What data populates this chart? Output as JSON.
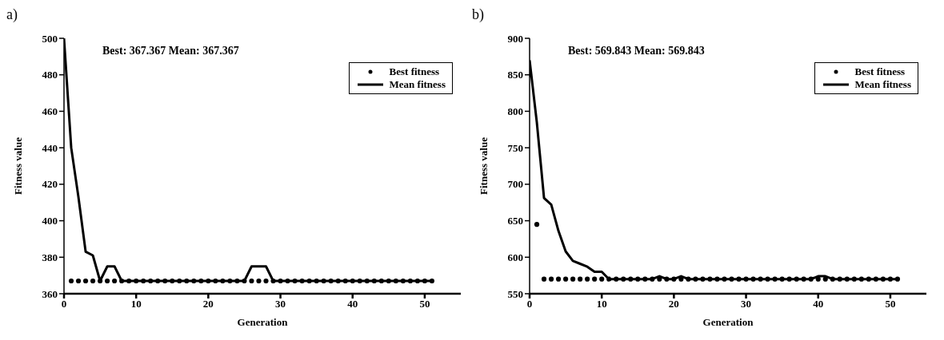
{
  "chart_data": [
    {
      "type": "line",
      "title": "a)",
      "xlabel": "Generation",
      "ylabel": "Fitness value",
      "annotations": [
        "Best: 367.367 Mean: 367.367"
      ],
      "x": [
        0,
        1,
        2,
        3,
        4,
        5,
        6,
        7,
        8,
        9,
        10,
        11,
        12,
        13,
        14,
        15,
        16,
        17,
        18,
        19,
        20,
        21,
        22,
        23,
        24,
        25,
        26,
        27,
        28,
        29,
        30,
        31,
        32,
        33,
        34,
        35,
        36,
        37,
        38,
        39,
        40,
        41,
        42,
        43,
        44,
        45,
        46,
        47,
        48,
        49,
        50,
        51
      ],
      "series": [
        {
          "name": "Best fitness",
          "type": "scatter",
          "marker": "circle",
          "color": "#000000",
          "values": [
            null,
            367,
            367,
            367,
            367,
            367,
            367,
            367,
            367,
            367,
            367,
            367,
            367,
            367,
            367,
            367,
            367,
            367,
            367,
            367,
            367,
            367,
            367,
            367,
            367,
            367,
            367,
            367,
            367,
            367,
            367,
            367,
            367,
            367,
            367,
            367,
            367,
            367,
            367,
            367,
            367,
            367,
            367,
            367,
            367,
            367,
            367,
            367,
            367,
            367,
            367,
            367
          ]
        },
        {
          "name": "Mean fitness",
          "marker": "none",
          "line_style": "solid",
          "color": "#000000",
          "values": [
            500,
            440,
            413,
            383,
            381,
            367,
            375,
            375,
            367,
            367,
            367,
            367,
            367,
            367,
            367,
            367,
            367,
            367,
            367,
            367,
            367,
            367,
            367,
            367,
            367,
            367,
            375,
            375,
            375,
            367,
            367,
            367,
            367,
            367,
            367,
            367,
            367,
            367,
            367,
            367,
            367,
            367,
            367,
            367,
            367,
            367,
            367,
            367,
            367,
            367,
            367,
            367
          ]
        }
      ],
      "xlim": [
        0,
        55
      ],
      "xticks": [
        0,
        10,
        20,
        30,
        40,
        50
      ],
      "ylim": [
        360,
        500
      ],
      "yticks": [
        360,
        380,
        400,
        420,
        440,
        460,
        480,
        500
      ],
      "legend": "top right"
    },
    {
      "type": "line",
      "title": "b)",
      "xlabel": "Generation",
      "ylabel": "Fitness value",
      "annotations": [
        "Best: 569.843 Mean: 569.843"
      ],
      "x": [
        0,
        1,
        2,
        3,
        4,
        5,
        6,
        7,
        8,
        9,
        10,
        11,
        12,
        13,
        14,
        15,
        16,
        17,
        18,
        19,
        20,
        21,
        22,
        23,
        24,
        25,
        26,
        27,
        28,
        29,
        30,
        31,
        32,
        33,
        34,
        35,
        36,
        37,
        38,
        39,
        40,
        41,
        42,
        43,
        44,
        45,
        46,
        47,
        48,
        49,
        50,
        51
      ],
      "series": [
        {
          "name": "Best fitness",
          "type": "scatter",
          "marker": "circle",
          "color": "#000000",
          "values": [
            850,
            645,
            570,
            570,
            570,
            570,
            570,
            570,
            570,
            570,
            570,
            570,
            570,
            570,
            570,
            570,
            570,
            570,
            570,
            570,
            570,
            570,
            570,
            570,
            570,
            570,
            570,
            570,
            570,
            570,
            570,
            570,
            570,
            570,
            570,
            570,
            570,
            570,
            570,
            570,
            570,
            570,
            570,
            570,
            570,
            570,
            570,
            570,
            570,
            570,
            570,
            570
          ]
        },
        {
          "name": "Mean fitness",
          "marker": "none",
          "line_style": "solid",
          "color": "#000000",
          "values": [
            870,
            785,
            681,
            672,
            636,
            608,
            595,
            591,
            587,
            580,
            580,
            570,
            570,
            570,
            570,
            570,
            570,
            570,
            574,
            570,
            570,
            574,
            570,
            570,
            570,
            570,
            570,
            570,
            570,
            570,
            570,
            570,
            570,
            570,
            570,
            570,
            570,
            570,
            570,
            570,
            574,
            574,
            570,
            570,
            570,
            570,
            570,
            570,
            570,
            570,
            570,
            570
          ]
        }
      ],
      "xlim": [
        0,
        55
      ],
      "xticks": [
        0,
        10,
        20,
        30,
        40,
        50
      ],
      "ylim": [
        550,
        900
      ],
      "yticks": [
        550,
        600,
        650,
        700,
        750,
        800,
        850,
        900
      ],
      "legend": "top right"
    }
  ]
}
